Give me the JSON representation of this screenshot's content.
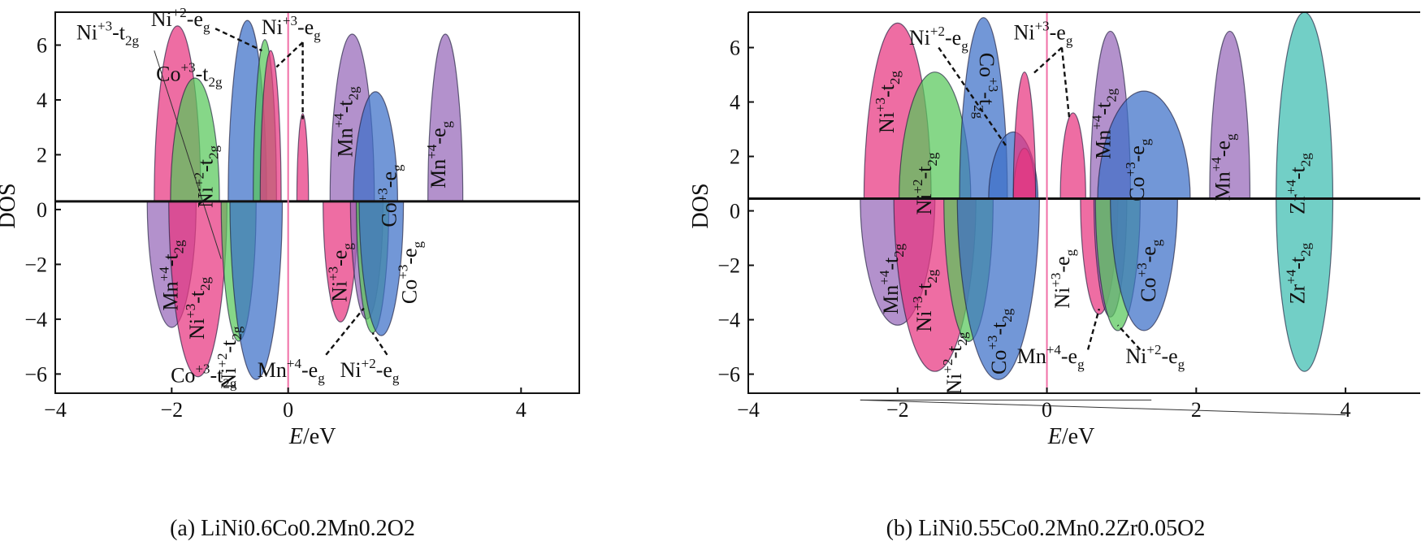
{
  "figure": {
    "panels": [
      {
        "caption": "(a) LiNi0.6Co0.2Mn0.2O2"
      },
      {
        "caption": "(b) LiNi0.55Co0.2Mn0.2Zr0.05O2"
      }
    ]
  },
  "chart_data": [
    {
      "type": "area",
      "panel": "a",
      "caption": "(a) LiNi0.6Co0.2Mn0.2O2",
      "xlabel": "E/eV",
      "ylabel": "DOS",
      "xlim": [
        -4,
        5
      ],
      "ylim": [
        -6.7,
        7.2
      ],
      "xticks": [
        -4,
        -2,
        0,
        4
      ],
      "xtick_labels": [
        "−4",
        "−2",
        "0",
        "4"
      ],
      "yticks": [
        6,
        4,
        2,
        0,
        -2,
        -4,
        -6
      ],
      "ytick_labels": [
        "6",
        "4",
        "2",
        "0",
        "−2",
        "−4",
        "−6"
      ],
      "fermi_level": 0,
      "baseline": 0.3,
      "grid": false,
      "colors": {
        "Ni3_t2g": "#e8357f",
        "Ni2_t2g": "#57c85a",
        "Co3": "#3b6fc7",
        "Mn4": "#9567b8",
        "Ni3_eg": "#e8357f",
        "Zr4": "#3cbcb0",
        "overlap": "#8a3a3a",
        "fermi": "#f06fa6"
      },
      "series": [
        {
          "name": "Ni+3-t2g (up)",
          "color": "Ni3_t2g",
          "center": -1.9,
          "halfwidth": 0.4,
          "peak": 6.7
        },
        {
          "name": "Ni+2-t2g (up)",
          "color": "Ni2_t2g",
          "center": -1.6,
          "halfwidth": 0.42,
          "peak": 4.8
        },
        {
          "name": "Co+3-t2g (up)",
          "color": "Co3",
          "center": -0.7,
          "halfwidth": 0.33,
          "peak": 6.9
        },
        {
          "name": "Co+3-t2g (up, 2)",
          "color": "Ni2_t2g",
          "center": -0.4,
          "halfwidth": 0.2,
          "peak": 6.2
        },
        {
          "name": "Ni+3-eg (up)",
          "color": "Ni3_t2g",
          "center": -0.3,
          "halfwidth": 0.18,
          "peak": 5.8
        },
        {
          "name": "Ni+3-eg (up, 2)",
          "color": "Ni3_t2g",
          "center": 0.25,
          "halfwidth": 0.1,
          "peak": 3.5
        },
        {
          "name": "Mn+4-t2g (up)",
          "color": "Mn4",
          "center": 1.1,
          "halfwidth": 0.38,
          "peak": 6.4
        },
        {
          "name": "Co+3-eg (up)",
          "color": "Co3",
          "center": 1.5,
          "halfwidth": 0.38,
          "peak": 4.3
        },
        {
          "name": "Mn+4-eg (up)",
          "color": "Mn4",
          "center": 2.7,
          "halfwidth": 0.3,
          "peak": 6.4
        },
        {
          "name": "Mn+4-t2g (down)",
          "color": "Mn4",
          "center": -2.0,
          "halfwidth": 0.42,
          "peak": -4.3
        },
        {
          "name": "Ni+3-t2g (down)",
          "color": "Ni3_t2g",
          "center": -1.55,
          "halfwidth": 0.5,
          "peak": -6.1
        },
        {
          "name": "Ni+2-t2g (down)",
          "color": "Ni2_t2g",
          "center": -0.85,
          "halfwidth": 0.3,
          "peak": -4.8
        },
        {
          "name": "Co+3-t2g (down)",
          "color": "Co3",
          "center": -0.55,
          "halfwidth": 0.45,
          "peak": -6.2
        },
        {
          "name": "Ni+3-eg (down)",
          "color": "Ni3_eg",
          "center": 0.9,
          "halfwidth": 0.3,
          "peak": -4.1
        },
        {
          "name": "Mn+4-eg (down)",
          "color": "Mn4",
          "center": 1.35,
          "halfwidth": 0.28,
          "peak": -4.0
        },
        {
          "name": "Ni+2-eg (down)",
          "color": "Ni2_t2g",
          "center": 1.45,
          "halfwidth": 0.28,
          "peak": -4.5
        },
        {
          "name": "Co+3-eg (down)",
          "color": "Co3",
          "center": 1.6,
          "halfwidth": 0.38,
          "peak": -4.6
        }
      ],
      "annotations": [
        {
          "base": "Ni",
          "sup": "+3",
          "dash": "-t",
          "sub": "2g",
          "x": -3.1,
          "y": 6.2,
          "rot": 0
        },
        {
          "base": "Ni",
          "sup": "+2",
          "dash": "-e",
          "sub": "g",
          "x": -1.85,
          "y": 6.7,
          "rot": 0
        },
        {
          "base": "Ni",
          "sup": "+3",
          "dash": "-e",
          "sub": "g",
          "x": 0.05,
          "y": 6.4,
          "rot": 0
        },
        {
          "base": "Co",
          "sup": "+3",
          "dash": "-t",
          "sub": "2g",
          "x": -1.7,
          "y": 4.7,
          "rot": 0
        },
        {
          "base": "Ni",
          "sup": "+2",
          "dash": "-t",
          "sub": "2g",
          "x": -1.3,
          "y": 1.2,
          "rot": -90
        },
        {
          "base": "Mn",
          "sup": "+4",
          "dash": "-t",
          "sub": "2g",
          "x": 1.1,
          "y": 3.2,
          "rot": -90
        },
        {
          "base": "Co",
          "sup": "+3",
          "dash": "-e",
          "sub": "g",
          "x": 1.85,
          "y": 0.5,
          "rot": -90
        },
        {
          "base": "Mn",
          "sup": "+4",
          "dash": "-e",
          "sub": "g",
          "x": 2.7,
          "y": 2.0,
          "rot": -90
        },
        {
          "base": "Mn",
          "sup": "+4",
          "dash": "-t",
          "sub": "2g",
          "x": -1.9,
          "y": -2.4,
          "rot": -90
        },
        {
          "base": "Ni",
          "sup": "+3",
          "dash": "-t",
          "sub": "2g",
          "x": -1.45,
          "y": -3.6,
          "rot": -90
        },
        {
          "base": "Ni",
          "sup": "+3",
          "dash": "-e",
          "sub": "g",
          "x": 1.0,
          "y": -2.3,
          "rot": -90
        },
        {
          "base": "Co",
          "sup": "+3",
          "dash": "-e",
          "sub": "g",
          "x": 2.2,
          "y": -2.3,
          "rot": -90
        },
        {
          "base": "Ni",
          "sup": "+2",
          "dash": "-t",
          "sub": "2g",
          "x": -0.9,
          "y": -5.4,
          "rot": -90
        },
        {
          "base": "Co",
          "sup": "+3",
          "dash": "-t",
          "sub": "2g",
          "x": -1.45,
          "y": -6.3,
          "rot": 0
        },
        {
          "base": "Mn",
          "sup": "+4",
          "dash": "-e",
          "sub": "g",
          "x": 0.05,
          "y": -6.1,
          "rot": 0
        },
        {
          "base": "Ni",
          "sup": "+2",
          "dash": "-e",
          "sub": "g",
          "x": 1.4,
          "y": -6.1,
          "rot": 0
        }
      ],
      "leaders": [
        [
          [
            -1.25,
            6.6
          ],
          [
            -0.45,
            5.8
          ]
        ],
        [
          [
            0.25,
            6.1
          ],
          [
            -0.2,
            5.2
          ]
        ],
        [
          [
            0.25,
            6.1
          ],
          [
            0.25,
            3.3
          ]
        ],
        [
          [
            0.65,
            -5.3
          ],
          [
            1.3,
            -3.6
          ]
        ],
        [
          [
            1.7,
            -5.3
          ],
          [
            1.45,
            -4.5
          ]
        ]
      ],
      "thin_lines": [
        [
          [
            -2.3,
            5.8
          ],
          [
            -1.15,
            -1.8
          ]
        ]
      ]
    },
    {
      "type": "area",
      "panel": "b",
      "caption": "(b) LiNi0.55Co0.2Mn0.2Zr0.05O2",
      "xlabel": "E/eV",
      "ylabel": "DOS",
      "xlim": [
        -4,
        5
      ],
      "ylim": [
        -6.7,
        7.3
      ],
      "xticks": [
        -4,
        -2,
        0,
        2,
        4
      ],
      "xtick_labels": [
        "−4",
        "−2",
        "0",
        "2",
        "4"
      ],
      "yticks": [
        6,
        4,
        2,
        0,
        -2,
        -4,
        -6
      ],
      "ytick_labels": [
        "6",
        "4",
        "2",
        "0",
        "−2",
        "−4",
        "−6"
      ],
      "fermi_level": 0,
      "baseline": 0.45,
      "grid": false,
      "series": [
        {
          "name": "Ni+3-t2g (up)",
          "color": "Ni3_t2g",
          "center": -2.0,
          "halfwidth": 0.45,
          "peak": 6.9
        },
        {
          "name": "Ni+2-t2g (up)",
          "color": "Ni2_t2g",
          "center": -1.5,
          "halfwidth": 0.48,
          "peak": 5.1
        },
        {
          "name": "Co+3-t2g (up)",
          "color": "Co3",
          "center": -0.85,
          "halfwidth": 0.32,
          "peak": 7.1
        },
        {
          "name": "Co+3 (up, 2)",
          "color": "Co3",
          "center": -0.45,
          "halfwidth": 0.33,
          "peak": 2.9
        },
        {
          "name": "Ni+2-eg (up)",
          "color": "Ni3_t2g",
          "center": -0.3,
          "halfwidth": 0.15,
          "peak": 2.3
        },
        {
          "name": "Ni+3-eg (up)",
          "color": "Ni3_t2g",
          "center": -0.3,
          "halfwidth": 0.15,
          "peak": 5.1
        },
        {
          "name": "Ni+3-eg (up, 2)",
          "color": "Ni3_t2g",
          "center": 0.35,
          "halfwidth": 0.17,
          "peak": 3.6
        },
        {
          "name": "Mn+4-t2g (up)",
          "color": "Mn4",
          "center": 0.85,
          "halfwidth": 0.27,
          "peak": 6.6
        },
        {
          "name": "Co+3-eg (up)",
          "color": "Co3",
          "center": 1.3,
          "halfwidth": 0.62,
          "peak": 4.4
        },
        {
          "name": "Mn+4-eg (up)",
          "color": "Mn4",
          "center": 2.45,
          "halfwidth": 0.27,
          "peak": 6.6
        },
        {
          "name": "Zr+4-t2g (up)",
          "color": "Zr4",
          "center": 3.45,
          "halfwidth": 0.38,
          "peak": 7.3
        },
        {
          "name": "Mn+4-t2g (down)",
          "color": "Mn4",
          "center": -2.0,
          "halfwidth": 0.5,
          "peak": -4.2
        },
        {
          "name": "Ni+3-t2g (down)",
          "color": "Ni3_t2g",
          "center": -1.5,
          "halfwidth": 0.55,
          "peak": -5.9
        },
        {
          "name": "Ni+2-t2g (down)",
          "color": "Ni2_t2g",
          "center": -1.05,
          "halfwidth": 0.33,
          "peak": -4.8
        },
        {
          "name": "Co+3-t2g (down)",
          "color": "Co3",
          "center": -0.65,
          "halfwidth": 0.55,
          "peak": -6.2
        },
        {
          "name": "Ni+3-eg (down)",
          "color": "Ni3_t2g",
          "center": 0.7,
          "halfwidth": 0.25,
          "peak": -3.8
        },
        {
          "name": "Mn+4-eg (down)",
          "color": "Mn4",
          "center": 0.85,
          "halfwidth": 0.22,
          "peak": -3.9
        },
        {
          "name": "Ni+2-eg (down)",
          "color": "Ni2_t2g",
          "center": 0.95,
          "halfwidth": 0.3,
          "peak": -4.4
        },
        {
          "name": "Co+3-eg (down)",
          "color": "Co3",
          "center": 1.3,
          "halfwidth": 0.45,
          "peak": -4.4
        },
        {
          "name": "Zr+4-t2g (down)",
          "color": "Zr4",
          "center": 3.45,
          "halfwidth": 0.38,
          "peak": -5.9
        }
      ],
      "annotations": [
        {
          "base": "Ni",
          "sup": "+3",
          "dash": "-t",
          "sub": "2g",
          "x": -2.05,
          "y": 4.0,
          "rot": -90
        },
        {
          "base": "Ni",
          "sup": "+2",
          "dash": "-e",
          "sub": "g",
          "x": -1.45,
          "y": 6.1,
          "rot": 0
        },
        {
          "base": "Ni",
          "sup": "+3",
          "dash": "-e",
          "sub": "g",
          "x": -0.05,
          "y": 6.3,
          "rot": 0
        },
        {
          "base": "Co",
          "sup": "+3",
          "dash": "-t",
          "sub": "2g",
          "x": -0.9,
          "y": 4.6,
          "rot": 90
        },
        {
          "base": "Ni",
          "sup": "+2",
          "dash": "-t",
          "sub": "2g",
          "x": -1.55,
          "y": 1.0,
          "rot": -90
        },
        {
          "base": "Mn",
          "sup": "+4",
          "dash": "-t",
          "sub": "2g",
          "x": 0.85,
          "y": 3.2,
          "rot": -90
        },
        {
          "base": "Co",
          "sup": "+3",
          "dash": "-e",
          "sub": "g",
          "x": 1.3,
          "y": 1.5,
          "rot": -90
        },
        {
          "base": "Mn",
          "sup": "+4",
          "dash": "-e",
          "sub": "g",
          "x": 2.45,
          "y": 1.6,
          "rot": -90
        },
        {
          "base": "Zr",
          "sup": "+4",
          "dash": "-t",
          "sub": "2g",
          "x": 3.45,
          "y": 1.0,
          "rot": -90
        },
        {
          "base": "Mn",
          "sup": "+4",
          "dash": "-t",
          "sub": "2g",
          "x": -2.0,
          "y": -2.5,
          "rot": -90
        },
        {
          "base": "Ni",
          "sup": "+3",
          "dash": "-t",
          "sub": "2g",
          "x": -1.55,
          "y": -3.3,
          "rot": -90
        },
        {
          "base": "Ni",
          "sup": "+3",
          "dash": "-e",
          "sub": "g",
          "x": 0.3,
          "y": -2.5,
          "rot": -90
        },
        {
          "base": "Co",
          "sup": "+3",
          "dash": "-e",
          "sub": "g",
          "x": 1.45,
          "y": -2.2,
          "rot": -90
        },
        {
          "base": "Zr",
          "sup": "+4",
          "dash": "-t",
          "sub": "2g",
          "x": 3.45,
          "y": -2.3,
          "rot": -90
        },
        {
          "base": "Ni",
          "sup": "+2",
          "dash": "-t",
          "sub": "2g",
          "x": -1.15,
          "y": -5.6,
          "rot": -90
        },
        {
          "base": "Co",
          "sup": "+3",
          "dash": "-t",
          "sub": "2g",
          "x": -0.55,
          "y": -4.8,
          "rot": -90
        },
        {
          "base": "Mn",
          "sup": "+4",
          "dash": "-e",
          "sub": "g",
          "x": 0.05,
          "y": -5.6,
          "rot": 0
        },
        {
          "base": "Ni",
          "sup": "+2",
          "dash": "-e",
          "sub": "g",
          "x": 1.45,
          "y": -5.6,
          "rot": 0
        }
      ],
      "leaders": [
        [
          [
            -1.45,
            6.0
          ],
          [
            -0.55,
            2.4
          ]
        ],
        [
          [
            0.2,
            6.0
          ],
          [
            -0.2,
            5.0
          ]
        ],
        [
          [
            0.2,
            6.0
          ],
          [
            0.3,
            3.4
          ]
        ],
        [
          [
            0.55,
            -5.1
          ],
          [
            0.7,
            -3.6
          ]
        ],
        [
          [
            1.25,
            -5.1
          ],
          [
            0.95,
            -4.2
          ]
        ]
      ],
      "thin_lines": [
        [
          [
            -2.5,
            -6.95
          ],
          [
            1.4,
            -6.95
          ]
        ],
        [
          [
            -2.5,
            -6.95
          ],
          [
            4.0,
            -7.5
          ]
        ]
      ]
    }
  ]
}
